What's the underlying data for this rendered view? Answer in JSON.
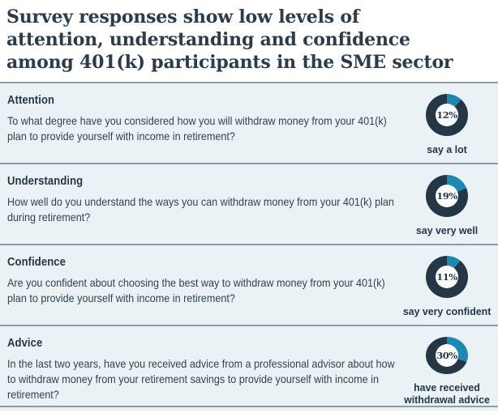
{
  "title": "Survey responses show low levels of attention, understanding and confidence among 401(k) participants in the SME sector",
  "colors": {
    "accent_teal": "#1f88b2",
    "navy": "#243746",
    "row_background": "#eaf2f6",
    "divider_gray": "#8e9da6",
    "title_text": "#2d3c4b",
    "body_text": "#33424e",
    "donut_hole": "#ffffff"
  },
  "rows": [
    {
      "heading": "Attention",
      "question": "To what degree have you considered how you will withdraw money from your 401(k) plan to provide yourself with income in retirement?",
      "value": 12,
      "percent_label": "12%",
      "caption": "say a lot"
    },
    {
      "heading": "Understanding",
      "question": "How well do you understand the ways you can withdraw money from your 401(k) plan during retirement?",
      "value": 19,
      "percent_label": "19%",
      "caption": "say very well"
    },
    {
      "heading": "Confidence",
      "question": "Are you confident about choosing the best way to withdraw money from your 401(k) plan to provide yourself with income in retirement?",
      "value": 11,
      "percent_label": "11%",
      "caption": "say very confident"
    },
    {
      "heading": "Advice",
      "question": "In the last two years, have you received advice from a professional advisor about how to withdraw money from your retirement savings to provide yourself with income in retirement?",
      "value": 30,
      "percent_label": "30%",
      "caption": "have received withdrawal advice"
    }
  ],
  "chart_data": [
    {
      "type": "pie",
      "title": "Attention",
      "labels": [
        "say a lot",
        "remainder"
      ],
      "values": [
        12,
        88
      ],
      "colors": [
        "#1f88b2",
        "#243746"
      ],
      "center_label": "12%",
      "donut": true,
      "start_angle_deg": 0,
      "direction": "clockwise"
    },
    {
      "type": "pie",
      "title": "Understanding",
      "labels": [
        "say very well",
        "remainder"
      ],
      "values": [
        19,
        81
      ],
      "colors": [
        "#1f88b2",
        "#243746"
      ],
      "center_label": "19%",
      "donut": true,
      "start_angle_deg": 0,
      "direction": "clockwise"
    },
    {
      "type": "pie",
      "title": "Confidence",
      "labels": [
        "say very confident",
        "remainder"
      ],
      "values": [
        11,
        89
      ],
      "colors": [
        "#1f88b2",
        "#243746"
      ],
      "center_label": "11%",
      "donut": true,
      "start_angle_deg": 0,
      "direction": "clockwise"
    },
    {
      "type": "pie",
      "title": "Advice",
      "labels": [
        "have received withdrawal advice",
        "remainder"
      ],
      "values": [
        30,
        70
      ],
      "colors": [
        "#1f88b2",
        "#243746"
      ],
      "center_label": "30%",
      "donut": true,
      "start_angle_deg": 0,
      "direction": "clockwise"
    }
  ]
}
